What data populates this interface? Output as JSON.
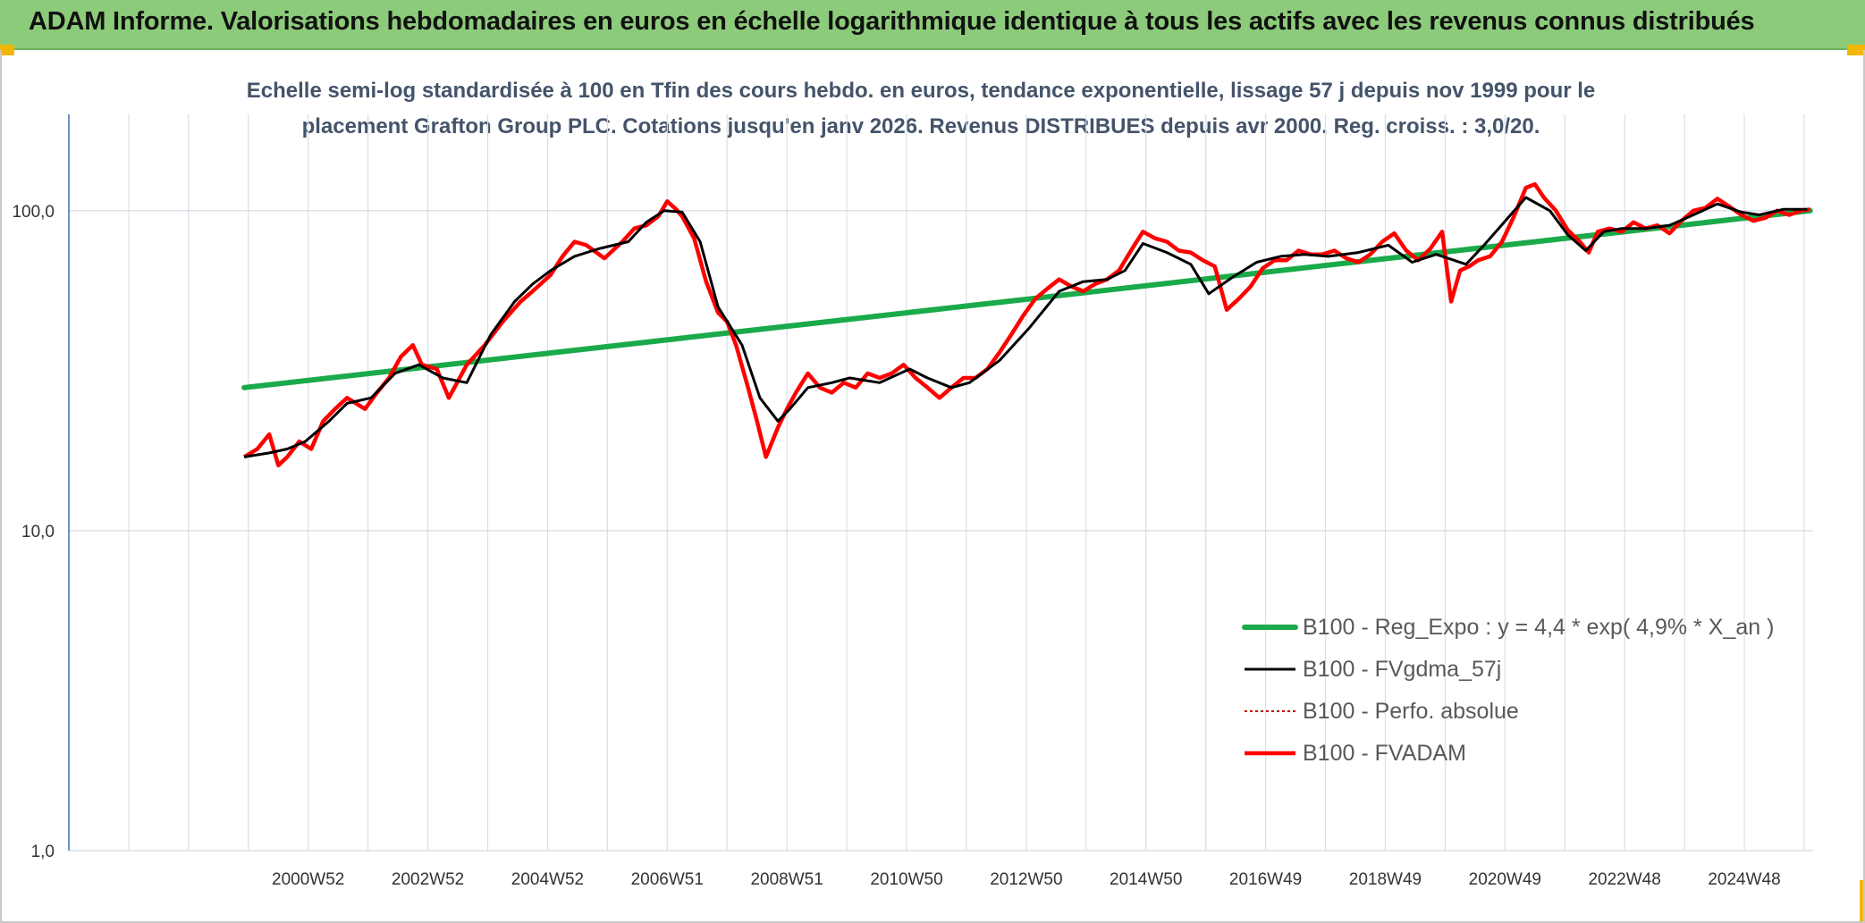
{
  "header": {
    "title": "ADAM Informe. Valorisations hebdomadaires en euros en échelle logarithmique identique à tous les actifs avec les revenus connus distribués"
  },
  "colors": {
    "header_bg": "#8ccb7a",
    "accent_corner": "#f2b705",
    "trend": "#1aaa4a",
    "smoothed": "#000000",
    "absolute": "#c00000",
    "fvadam": "#ff0000",
    "grid": "#d9dfe6",
    "axis": "#4a78b8"
  },
  "chart_data": {
    "type": "line",
    "title_line1": "Echelle semi-log standardisée à 100 en Tfin des cours hebdo. en euros, tendance exponentielle, lissage 57 j depuis nov 1999 pour le",
    "title_line2": "placement Grafton Group PLC. Cotations jusqu'en janv 2026. Revenus DISTRIBUES depuis avr 2000. Reg. croiss. : 3,0/20.",
    "y_scale": "log",
    "ylim": [
      1,
      200
    ],
    "xlim": [
      1996.95,
      2026.1
    ],
    "y_ticks": [
      1,
      10,
      100
    ],
    "y_tick_labels": [
      "1,0",
      "10,0",
      "100,0"
    ],
    "x_ticks": [
      2000.95,
      2002.95,
      2004.95,
      2006.95,
      2008.95,
      2010.95,
      2012.95,
      2014.95,
      2016.95,
      2018.95,
      2020.95,
      2022.95,
      2024.95
    ],
    "x_tick_labels": [
      "2000W52",
      "2002W52",
      "2004W52",
      "2006W51",
      "2008W51",
      "2010W50",
      "2012W50",
      "2014W50",
      "2016W49",
      "2018W49",
      "2020W49",
      "2022W48",
      "2024W48"
    ],
    "grid": true,
    "legend_position": "lower-right",
    "series": [
      {
        "name": "B100 - Reg_Expo : y = 4,4 * exp( 4,9% *  X_an )",
        "style": "trend",
        "x": [
          1999.88,
          2026.05
        ],
        "y": [
          28,
          100
        ]
      },
      {
        "name": "B100 - FVgdma_57j",
        "style": "smoothed",
        "x": [
          1999.88,
          2000.3,
          2000.6,
          2000.9,
          2001.3,
          2001.6,
          2002.0,
          2002.4,
          2002.8,
          2003.2,
          2003.6,
          2004.0,
          2004.4,
          2004.7,
          2005.0,
          2005.4,
          2005.8,
          2006.3,
          2006.6,
          2006.9,
          2007.2,
          2007.5,
          2007.8,
          2008.2,
          2008.5,
          2008.8,
          2009.0,
          2009.3,
          2009.7,
          2010.0,
          2010.5,
          2011.0,
          2011.3,
          2011.7,
          2012.0,
          2012.5,
          2013.0,
          2013.5,
          2013.9,
          2014.3,
          2014.6,
          2014.9,
          2015.3,
          2015.7,
          2016.0,
          2016.4,
          2016.8,
          2017.2,
          2017.6,
          2018.0,
          2018.5,
          2019.0,
          2019.4,
          2019.8,
          2020.1,
          2020.3,
          2020.6,
          2021.0,
          2021.3,
          2021.7,
          2022.0,
          2022.3,
          2022.6,
          2022.9,
          2023.3,
          2023.7,
          2024.1,
          2024.5,
          2024.9,
          2025.2,
          2025.6,
          2026.0
        ],
        "y": [
          17,
          17.5,
          18,
          19,
          22,
          25,
          26,
          31,
          33,
          30,
          29,
          41,
          52,
          59,
          65,
          72,
          76,
          80,
          92,
          100,
          99,
          80,
          50,
          38,
          26,
          22,
          24,
          28,
          29,
          30,
          29,
          32,
          30,
          28,
          29,
          34,
          43,
          56,
          60,
          61,
          65,
          79,
          74,
          68,
          55,
          62,
          69,
          72,
          73,
          72,
          74,
          78,
          69,
          73,
          70,
          68,
          78,
          95,
          110,
          100,
          84,
          75,
          86,
          88,
          88,
          90,
          97,
          105,
          99,
          97,
          101,
          101
        ]
      },
      {
        "name": "B100 - Perfo. absolue",
        "style": "absolute",
        "x": [],
        "y": []
      },
      {
        "name": "B100 - FVADAM",
        "style": "fvadam",
        "x": [
          1999.88,
          2000.1,
          2000.3,
          2000.45,
          2000.6,
          2000.8,
          2001.0,
          2001.2,
          2001.4,
          2001.6,
          2001.9,
          2002.1,
          2002.3,
          2002.5,
          2002.7,
          2002.85,
          2003.1,
          2003.3,
          2003.6,
          2003.9,
          2004.2,
          2004.5,
          2004.7,
          2005.0,
          2005.2,
          2005.4,
          2005.6,
          2005.9,
          2006.2,
          2006.4,
          2006.6,
          2006.8,
          2006.95,
          2007.1,
          2007.2,
          2007.4,
          2007.6,
          2007.8,
          2007.95,
          2008.1,
          2008.3,
          2008.45,
          2008.6,
          2008.8,
          2008.95,
          2009.1,
          2009.3,
          2009.5,
          2009.7,
          2009.9,
          2010.1,
          2010.3,
          2010.5,
          2010.7,
          2010.9,
          2011.1,
          2011.3,
          2011.5,
          2011.7,
          2011.9,
          2012.1,
          2012.3,
          2012.5,
          2012.7,
          2012.9,
          2013.1,
          2013.3,
          2013.5,
          2013.7,
          2013.9,
          2014.1,
          2014.3,
          2014.5,
          2014.7,
          2014.9,
          2015.1,
          2015.3,
          2015.5,
          2015.7,
          2015.9,
          2016.1,
          2016.3,
          2016.5,
          2016.7,
          2016.9,
          2017.1,
          2017.3,
          2017.5,
          2017.7,
          2017.9,
          2018.1,
          2018.3,
          2018.5,
          2018.7,
          2018.9,
          2019.1,
          2019.3,
          2019.5,
          2019.7,
          2019.9,
          2020.05,
          2020.2,
          2020.35,
          2020.5,
          2020.7,
          2020.9,
          2021.1,
          2021.3,
          2021.45,
          2021.6,
          2021.8,
          2022.0,
          2022.2,
          2022.35,
          2022.5,
          2022.7,
          2022.9,
          2023.1,
          2023.3,
          2023.5,
          2023.7,
          2023.9,
          2024.1,
          2024.3,
          2024.5,
          2024.7,
          2024.9,
          2025.1,
          2025.3,
          2025.5,
          2025.7,
          2025.9,
          2026.05
        ],
        "y": [
          17,
          18,
          20,
          16,
          17,
          19,
          18,
          22,
          24,
          26,
          24,
          27,
          30,
          35,
          38,
          33,
          32,
          26,
          33,
          38,
          45,
          52,
          56,
          63,
          72,
          80,
          78,
          71,
          80,
          88,
          90,
          96,
          107,
          101,
          96,
          82,
          60,
          48,
          45,
          38,
          28,
          22,
          17,
          21,
          24,
          27,
          31,
          28,
          27,
          29,
          28,
          31,
          30,
          31,
          33,
          30,
          28,
          26,
          28,
          30,
          30,
          32,
          36,
          41,
          47,
          53,
          57,
          61,
          58,
          56,
          59,
          61,
          65,
          75,
          86,
          82,
          80,
          75,
          74,
          70,
          67,
          49,
          53,
          58,
          66,
          70,
          70,
          75,
          73,
          73,
          75,
          71,
          69,
          73,
          80,
          85,
          75,
          70,
          76,
          86,
          52,
          65,
          67,
          70,
          72,
          80,
          96,
          118,
          121,
          110,
          100,
          87,
          80,
          74,
          86,
          88,
          86,
          92,
          88,
          90,
          85,
          93,
          100,
          102,
          109,
          103,
          97,
          93,
          95,
          100,
          97,
          100,
          101
        ]
      }
    ]
  }
}
